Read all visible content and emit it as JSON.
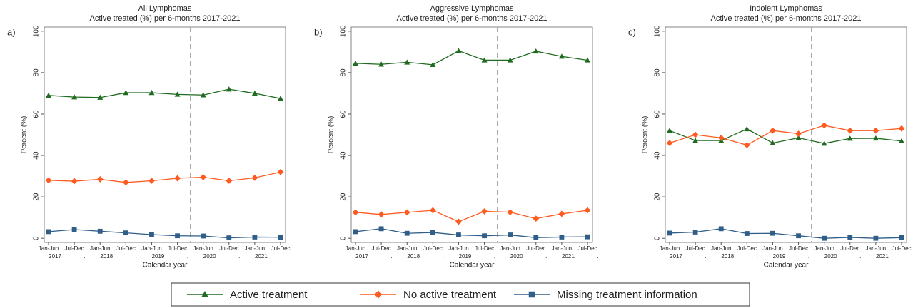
{
  "chart_data": [
    {
      "type": "line",
      "panel_label": "a)",
      "title": "All Lymphomas",
      "subtitle": "Active treated (%) per 6-months 2017-2021",
      "ylabel": "Percent (%)",
      "xlabel": "Calendar year",
      "categories": [
        "Jan-Jun",
        "Jul-Dec",
        "Jan-Jun",
        "Jul-Dec",
        "Jan-Jun",
        "Jul-Dec",
        "Jan-Jun",
        "Jul-Dec",
        "Jan-Jun",
        "Jul-Dec"
      ],
      "year_labels": [
        "2017",
        ".",
        "2018",
        ".",
        "2019",
        ".",
        "2020",
        ".",
        "2021",
        "."
      ],
      "ylim": [
        -2,
        102
      ],
      "yticks": [
        0,
        20,
        40,
        60,
        80,
        100
      ],
      "series": [
        {
          "values": [
            69,
            68.2,
            68,
            70.3,
            70.3,
            69.5,
            69.2,
            72,
            70,
            67.5
          ]
        },
        {
          "values": [
            28,
            27.6,
            28.5,
            27,
            27.8,
            29,
            29.5,
            27.8,
            29.2,
            32
          ]
        },
        {
          "values": [
            3.2,
            4.2,
            3.4,
            2.6,
            1.8,
            1.2,
            1.1,
            0.2,
            0.6,
            0.5
          ]
        }
      ]
    },
    {
      "type": "line",
      "panel_label": "b)",
      "title": "Aggressive Lymphomas",
      "subtitle": "Active treated (%) per 6-months 2017-2021",
      "ylabel": "Percent (%)",
      "xlabel": "Calendar year",
      "categories": [
        "Jan-Jun",
        "Jul-Dec",
        "Jan-Jun",
        "Jul-Dec",
        "Jan-Jun",
        "Jul-Dec",
        "Jan-Jun",
        "Jul-Dec",
        "Jan-Jun",
        "Jul-Dec"
      ],
      "year_labels": [
        "2017",
        ".",
        "2018",
        ".",
        "2019",
        ".",
        "2020",
        ".",
        "2021",
        "."
      ],
      "ylim": [
        -2,
        102
      ],
      "yticks": [
        0,
        20,
        40,
        60,
        80,
        100
      ],
      "series": [
        {
          "values": [
            84.5,
            84,
            85,
            83.8,
            90.5,
            86,
            86,
            90.3,
            87.8,
            86
          ]
        },
        {
          "values": [
            12.5,
            11.5,
            12.5,
            13.5,
            8,
            13,
            12.6,
            9.5,
            11.8,
            13.5
          ]
        },
        {
          "values": [
            3.2,
            4.6,
            2.4,
            2.8,
            1.6,
            1.2,
            1.6,
            0.3,
            0.6,
            0.7
          ]
        }
      ]
    },
    {
      "type": "line",
      "panel_label": "c)",
      "title": "Indolent Lymphomas",
      "subtitle": "Active treated (%) per 6-months 2017-2021",
      "ylabel": "Percent (%)",
      "xlabel": "Calendar year",
      "categories": [
        "Jan-Jun",
        "Jul-Dec",
        "Jan-Jun",
        "Jul-Dec",
        "Jan-Jun",
        "Jul-Dec",
        "Jan-Jun",
        "Jul-Dec",
        "Jan-Jun",
        "Jul-Dec"
      ],
      "year_labels": [
        "2017",
        ".",
        "2018",
        ".",
        "2019",
        ".",
        "2020",
        ".",
        "2021",
        "."
      ],
      "ylim": [
        -2,
        102
      ],
      "yticks": [
        0,
        20,
        40,
        60,
        80,
        100
      ],
      "series": [
        {
          "values": [
            52,
            47.2,
            47.2,
            52.8,
            46,
            48.5,
            45.8,
            48.2,
            48.3,
            47
          ]
        },
        {
          "values": [
            46,
            50,
            48.5,
            45,
            52,
            50.5,
            54.5,
            52,
            52,
            53
          ]
        },
        {
          "values": [
            2.5,
            3,
            4.6,
            2.3,
            2.4,
            1.2,
            0,
            0.4,
            0,
            0.3
          ]
        }
      ]
    }
  ],
  "legend": [
    {
      "name": "Active treatment",
      "color": "#1f6b1f",
      "marker": "triangle"
    },
    {
      "name": "No active treatment",
      "color": "#ff5a1f",
      "marker": "diamond"
    },
    {
      "name": "Missing treatment information",
      "color": "#2f5e88",
      "marker": "square"
    }
  ]
}
